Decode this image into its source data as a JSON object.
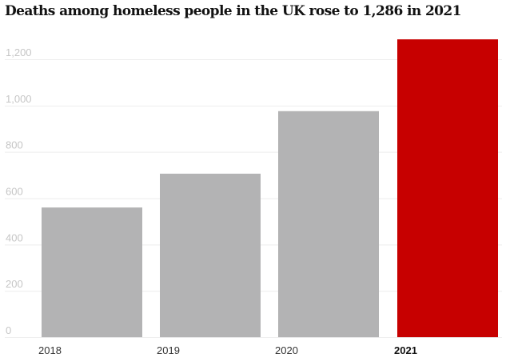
{
  "colors": {
    "bar_default": "#b3b3b4",
    "bar_highlight": "#c70000"
  },
  "chart_data": {
    "type": "bar",
    "title": "Deaths among homeless people in the UK rose to 1,286 in 2021",
    "xlabel": "",
    "ylabel": "",
    "categories": [
      "2018",
      "2019",
      "2020",
      "2021"
    ],
    "values": [
      560,
      706,
      976,
      1286
    ],
    "highlight_index": 3,
    "ylim": [
      0,
      1300
    ],
    "yticks": [
      0,
      200,
      400,
      600,
      800,
      1000,
      1200
    ],
    "ytick_labels": [
      "0",
      "200",
      "400",
      "600",
      "800",
      "1,000",
      "1,200"
    ],
    "grid": true,
    "legend": "none"
  }
}
